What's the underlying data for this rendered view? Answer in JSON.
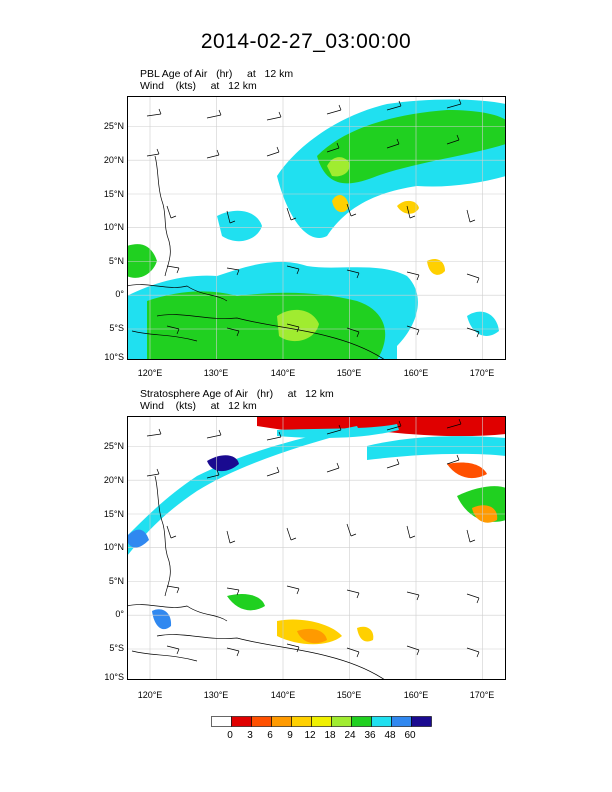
{
  "title": "2014-02-27_03:00:00",
  "panels": [
    {
      "id": "pbl",
      "label_line1": "PBL Age of Air   (hr)     at   12 km",
      "label_line2": "Wind    (kts)     at   12 km"
    },
    {
      "id": "strat",
      "label_line1": "Stratosphere Age of Air   (hr)     at   12 km",
      "label_line2": "Wind    (kts)     at   12 km"
    }
  ],
  "axes": {
    "lat_labels": [
      "25°N",
      "20°N",
      "15°N",
      "10°N",
      "5°N",
      "0°",
      "5°S",
      "10°S"
    ],
    "lon_labels": [
      "120°E",
      "130°E",
      "140°E",
      "150°E",
      "160°E",
      "170°E"
    ],
    "lon_range": [
      116.5,
      173.5
    ],
    "lat_range": [
      -10,
      29
    ]
  },
  "colorbar": {
    "labels": [
      "0",
      "3",
      "6",
      "9",
      "12",
      "18",
      "24",
      "36",
      "48",
      "60"
    ],
    "colors": [
      "#ffffff",
      "#e00000",
      "#ff5000",
      "#ff9a00",
      "#ffd000",
      "#f0f000",
      "#a0ec30",
      "#20d020",
      "#20e0f0",
      "#3088f0",
      "#1a0a90"
    ]
  }
}
